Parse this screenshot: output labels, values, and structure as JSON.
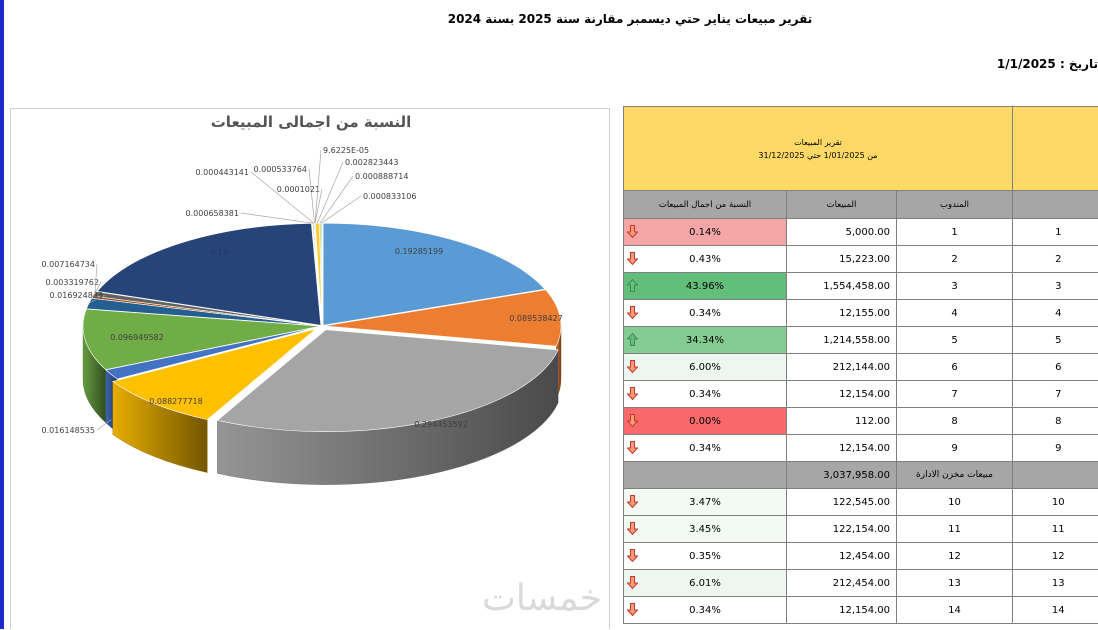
{
  "page": {
    "title": "تقرير مبيعات يناير حتي  ديسمبر مقارنة سنة 2025 بسنة 2024",
    "date_label": "تاريخ : 1/1/2025",
    "watermark": "خمسات"
  },
  "chart_data": {
    "type": "pie",
    "title": "النسبة من اجمالى المبيعات",
    "style": "3d-exploded",
    "slices": [
      {
        "label": "0.19285199",
        "value": 0.19285199,
        "color": "#5b9bd5"
      },
      {
        "label": "0.089538427",
        "value": 0.089538427,
        "color": "#ed7d31"
      },
      {
        "label": "0.294453592",
        "value": 0.294453592,
        "color": "#a5a5a5"
      },
      {
        "label": "0.088277718",
        "value": 0.088277718,
        "color": "#ffc000"
      },
      {
        "label": "0.016148535",
        "value": 0.016148535,
        "color": "#4472c4"
      },
      {
        "label": "0.096949582",
        "value": 0.096949582,
        "color": "#70ad47"
      },
      {
        "label": "0.016924843",
        "value": 0.016924843,
        "color": "#255e91"
      },
      {
        "label": "0.003319762",
        "value": 0.003319762,
        "color": "#9e480e"
      },
      {
        "label": "0.007164734",
        "value": 0.007164734,
        "color": "#636363"
      },
      {
        "label": "0.19",
        "value": 0.19,
        "color": "#264478"
      },
      {
        "label": "0.000658381",
        "value": 0.000658381,
        "color": "#997300"
      },
      {
        "label": "0.000443141",
        "value": 0.000443141,
        "color": "#43682b"
      },
      {
        "label": "0.000533764",
        "value": 0.000533764,
        "color": "#698ed0"
      },
      {
        "label": "0.0001021",
        "value": 0.0001021,
        "color": "#f1975a"
      },
      {
        "label": "9.6225E-05",
        "value": 9.6225e-05,
        "color": "#b7b7b7"
      },
      {
        "label": "0.002823443",
        "value": 0.002823443,
        "color": "#ffcd33"
      },
      {
        "label": "0.000888714",
        "value": 0.000888714,
        "color": "#8cc168"
      },
      {
        "label": "0.000833106",
        "value": 0.000833106,
        "color": "#a9d18e"
      }
    ]
  },
  "report": {
    "banner_line1": "تقرير المبيعات",
    "banner_line2": "من 1/01/2025 حتي 31/12/2025",
    "headers": {
      "pct": "النسبة من اجمال المبيعات",
      "sales": "المبيعات",
      "rep": "المندوب",
      "idx": ""
    },
    "rows": [
      {
        "pct": "0.14%",
        "sales": "5,000.00",
        "rep": "1",
        "idx": "1",
        "bg": "#f4a6a6",
        "arrow": "down"
      },
      {
        "pct": "0.43%",
        "sales": "15,223.00",
        "rep": "2",
        "idx": "2",
        "bg": "#ffffff",
        "arrow": "down"
      },
      {
        "pct": "43.96%",
        "sales": "1,554,458.00",
        "rep": "3",
        "idx": "3",
        "bg": "#63be7b",
        "arrow": "up"
      },
      {
        "pct": "0.34%",
        "sales": "12,155.00",
        "rep": "4",
        "idx": "4",
        "bg": "#ffffff",
        "arrow": "down"
      },
      {
        "pct": "34.34%",
        "sales": "1,214,558.00",
        "rep": "5",
        "idx": "5",
        "bg": "#85cc92",
        "arrow": "up"
      },
      {
        "pct": "6.00%",
        "sales": "212,144.00",
        "rep": "6",
        "idx": "6",
        "bg": "#eef7ef",
        "arrow": "down"
      },
      {
        "pct": "0.34%",
        "sales": "12,154.00",
        "rep": "7",
        "idx": "7",
        "bg": "#ffffff",
        "arrow": "down"
      },
      {
        "pct": "0.00%",
        "sales": "112.00",
        "rep": "8",
        "idx": "8",
        "bg": "#f8696b",
        "arrow": "down"
      },
      {
        "pct": "0.34%",
        "sales": "12,154.00",
        "rep": "9",
        "idx": "9",
        "bg": "#ffffff",
        "arrow": "down"
      }
    ],
    "subtotal": {
      "sales": "3,037,958.00",
      "label": "مبيعات مخزن الادارة"
    },
    "rows2": [
      {
        "pct": "3.47%",
        "sales": "122,545.00",
        "rep": "10",
        "idx": "10",
        "bg": "#f3faf4",
        "arrow": "down"
      },
      {
        "pct": "3.45%",
        "sales": "122,154.00",
        "rep": "11",
        "idx": "11",
        "bg": "#f3faf4",
        "arrow": "down"
      },
      {
        "pct": "0.35%",
        "sales": "12,454.00",
        "rep": "12",
        "idx": "12",
        "bg": "#ffffff",
        "arrow": "down"
      },
      {
        "pct": "6.01%",
        "sales": "212,454.00",
        "rep": "13",
        "idx": "13",
        "bg": "#eef7ef",
        "arrow": "down"
      },
      {
        "pct": "0.34%",
        "sales": "12,154.00",
        "rep": "14",
        "idx": "14",
        "bg": "#ffffff",
        "arrow": "down"
      }
    ]
  }
}
